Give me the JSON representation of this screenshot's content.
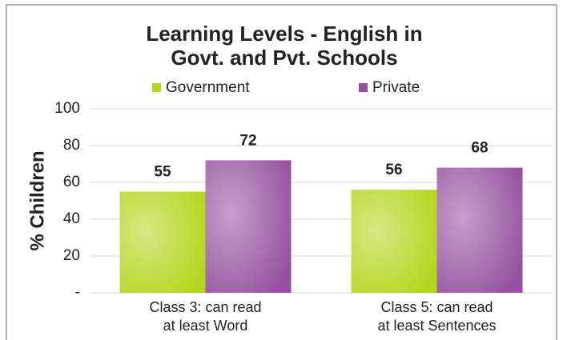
{
  "chart_data": {
    "type": "bar",
    "title": [
      "Learning Levels - English in",
      "Govt. and Pvt. Schools"
    ],
    "ylabel": "% Children",
    "categories": [
      "Class 3: can read\nat least Word",
      "Class 5: can read\nat least Sentences"
    ],
    "series": [
      {
        "name": "Government",
        "color": "#b5d51c",
        "values": [
          55,
          56
        ]
      },
      {
        "name": "Private",
        "color": "#95509f",
        "values": [
          72,
          68
        ]
      }
    ],
    "ylim": [
      0,
      100
    ],
    "yticks": [
      {
        "value": 0,
        "label": "-"
      },
      20,
      40,
      60,
      80,
      100
    ],
    "grid": true,
    "legend": "top"
  }
}
